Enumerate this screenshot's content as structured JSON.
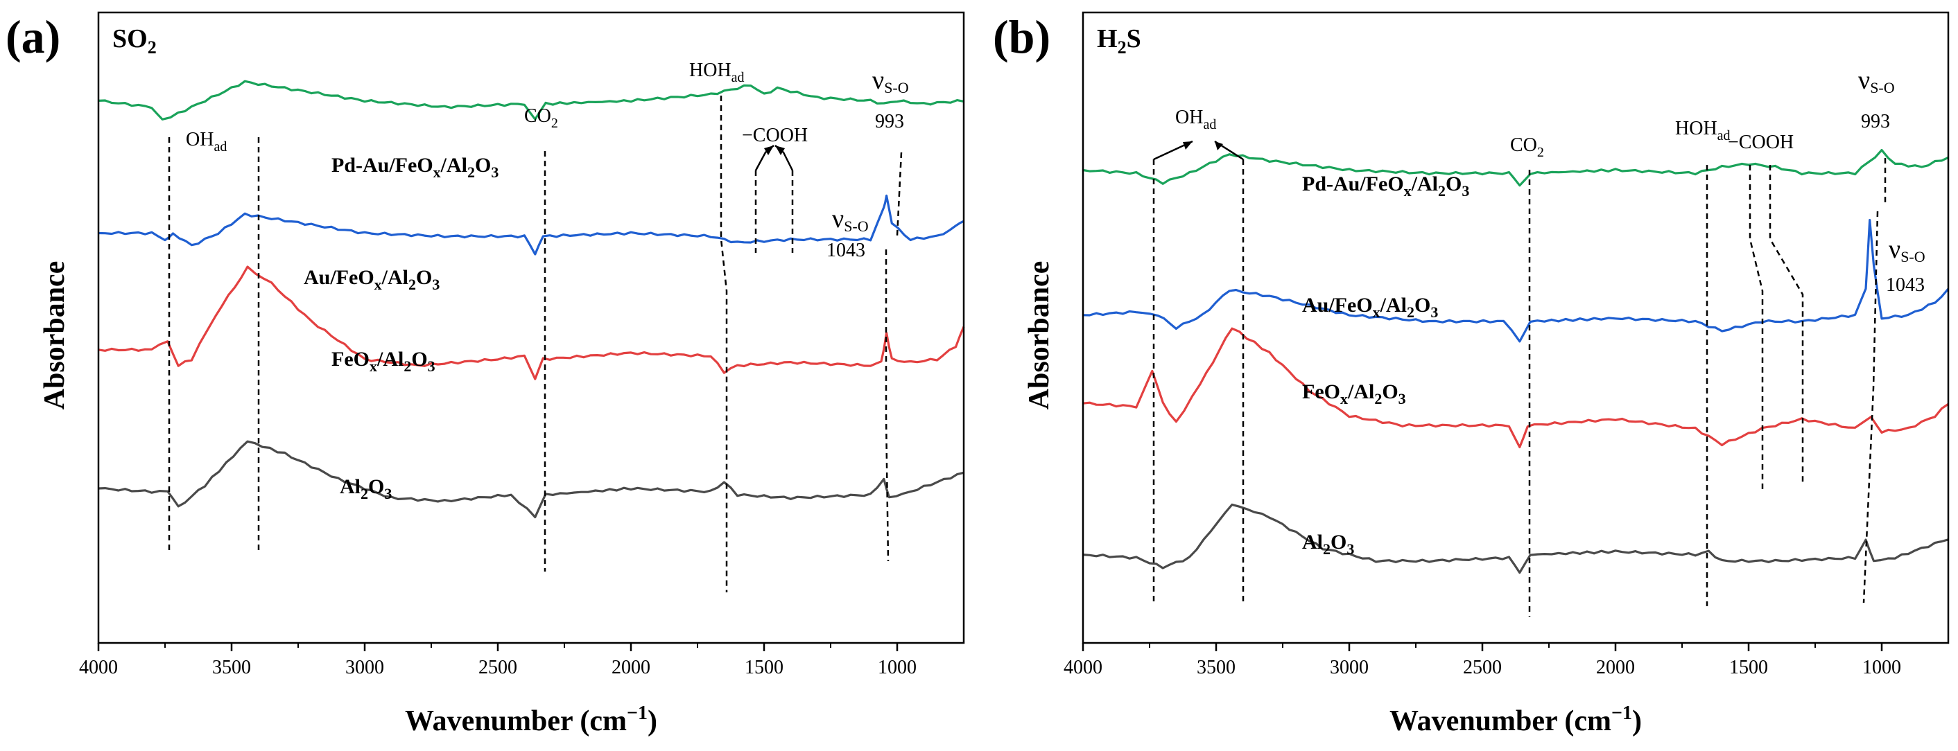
{
  "chart_data": [
    {
      "type": "line",
      "panel": "(a)",
      "title": "SO2",
      "title_main": "SO",
      "title_sub": "2",
      "xlabel": "Wavenumber (cm",
      "xlabel_sup": "−1",
      "xlabel_close": ")",
      "ylabel": "Absorbance",
      "xlim": [
        4000,
        750
      ],
      "x_reversed": true,
      "y_ticks_shown": false,
      "x_ticks": [
        4000,
        3500,
        3000,
        2500,
        2000,
        1500,
        1000
      ],
      "x_tick_labels": [
        "4000",
        "3500",
        "3000",
        "2500",
        "2000",
        "1500",
        "1000"
      ],
      "series": [
        {
          "name": "Pd-Au/FeOx/Al2O3",
          "color": "#1aa35a",
          "label_parts": [
            "Pd-Au/FeO",
            "x",
            "/Al",
            "2",
            "O",
            "3"
          ],
          "points": [
            [
              4000,
              0.86
            ],
            [
              3800,
              0.85
            ],
            [
              3760,
              0.83
            ],
            [
              3700,
              0.84
            ],
            [
              3600,
              0.86
            ],
            [
              3450,
              0.89
            ],
            [
              3300,
              0.88
            ],
            [
              3000,
              0.86
            ],
            [
              2700,
              0.85
            ],
            [
              2400,
              0.855
            ],
            [
              2360,
              0.83
            ],
            [
              2320,
              0.855
            ],
            [
              2000,
              0.86
            ],
            [
              1700,
              0.87
            ],
            [
              1600,
              0.88
            ],
            [
              1550,
              0.885
            ],
            [
              1500,
              0.87
            ],
            [
              1450,
              0.88
            ],
            [
              1400,
              0.875
            ],
            [
              1300,
              0.865
            ],
            [
              1100,
              0.86
            ],
            [
              1050,
              0.855
            ],
            [
              1000,
              0.86
            ],
            [
              900,
              0.855
            ],
            [
              750,
              0.86
            ]
          ]
        },
        {
          "name": "Au/FeOx/Al2O3",
          "color": "#1f5fd1",
          "label_parts": [
            "Au/FeO",
            "x",
            "/Al",
            "2",
            "O",
            "3"
          ],
          "points": [
            [
              4000,
              0.65
            ],
            [
              3800,
              0.65
            ],
            [
              3750,
              0.64
            ],
            [
              3720,
              0.65
            ],
            [
              3650,
              0.63
            ],
            [
              3550,
              0.65
            ],
            [
              3450,
              0.68
            ],
            [
              3300,
              0.67
            ],
            [
              3000,
              0.65
            ],
            [
              2700,
              0.645
            ],
            [
              2400,
              0.645
            ],
            [
              2360,
              0.615
            ],
            [
              2330,
              0.645
            ],
            [
              2000,
              0.65
            ],
            [
              1700,
              0.645
            ],
            [
              1600,
              0.635
            ],
            [
              1400,
              0.64
            ],
            [
              1100,
              0.64
            ],
            [
              1050,
              0.69
            ],
            [
              1040,
              0.71
            ],
            [
              1020,
              0.665
            ],
            [
              950,
              0.64
            ],
            [
              850,
              0.645
            ],
            [
              780,
              0.66
            ],
            [
              750,
              0.67
            ]
          ]
        },
        {
          "name": "FeOx/Al2O3",
          "color": "#e34040",
          "label_parts": [
            "FeO",
            "x",
            "/Al",
            "2",
            "O",
            "3"
          ],
          "points": [
            [
              4000,
              0.465
            ],
            [
              3800,
              0.465
            ],
            [
              3740,
              0.48
            ],
            [
              3700,
              0.44
            ],
            [
              3650,
              0.45
            ],
            [
              3560,
              0.52
            ],
            [
              3440,
              0.595
            ],
            [
              3350,
              0.57
            ],
            [
              3200,
              0.51
            ],
            [
              3000,
              0.45
            ],
            [
              2800,
              0.44
            ],
            [
              2500,
              0.45
            ],
            [
              2400,
              0.455
            ],
            [
              2360,
              0.42
            ],
            [
              2330,
              0.45
            ],
            [
              2000,
              0.46
            ],
            [
              1700,
              0.455
            ],
            [
              1650,
              0.43
            ],
            [
              1600,
              0.44
            ],
            [
              1400,
              0.445
            ],
            [
              1100,
              0.44
            ],
            [
              1060,
              0.445
            ],
            [
              1040,
              0.49
            ],
            [
              1020,
              0.45
            ],
            [
              950,
              0.445
            ],
            [
              850,
              0.45
            ],
            [
              780,
              0.47
            ],
            [
              750,
              0.5
            ]
          ]
        },
        {
          "name": "Al2O3",
          "color": "#4a4a4a",
          "label_parts": [
            "Al",
            "2",
            "O",
            "3"
          ],
          "points": [
            [
              4000,
              0.245
            ],
            [
              3800,
              0.24
            ],
            [
              3740,
              0.24
            ],
            [
              3700,
              0.215
            ],
            [
              3600,
              0.25
            ],
            [
              3440,
              0.32
            ],
            [
              3300,
              0.3
            ],
            [
              3100,
              0.26
            ],
            [
              2900,
              0.23
            ],
            [
              2700,
              0.225
            ],
            [
              2450,
              0.235
            ],
            [
              2360,
              0.2
            ],
            [
              2320,
              0.235
            ],
            [
              2000,
              0.245
            ],
            [
              1700,
              0.24
            ],
            [
              1650,
              0.255
            ],
            [
              1600,
              0.235
            ],
            [
              1400,
              0.23
            ],
            [
              1100,
              0.235
            ],
            [
              1050,
              0.26
            ],
            [
              1030,
              0.23
            ],
            [
              950,
              0.24
            ],
            [
              850,
              0.255
            ],
            [
              750,
              0.27
            ]
          ]
        }
      ],
      "annotations": [
        {
          "text": "OH",
          "sub": "ad"
        },
        {
          "text": "CO",
          "sub": "2"
        },
        {
          "text": "HOH",
          "sub": "ad"
        },
        {
          "text": "−COOH"
        },
        {
          "text": "ν",
          "sub": "S-O",
          "value": "993"
        },
        {
          "text": "ν",
          "sub": "S-O",
          "value": "1043"
        }
      ]
    },
    {
      "type": "line",
      "panel": "(b)",
      "title": "H2S",
      "title_main": "H",
      "title_sub": "2",
      "title_tail": "S",
      "xlabel": "Wavenumber (cm",
      "xlabel_sup": "−1",
      "xlabel_close": ")",
      "ylabel": "Absorbance",
      "xlim": [
        4000,
        750
      ],
      "x_reversed": true,
      "y_ticks_shown": false,
      "x_ticks": [
        4000,
        3500,
        3000,
        2500,
        2000,
        1500,
        1000
      ],
      "x_tick_labels": [
        "4000",
        "3500",
        "3000",
        "2500",
        "2000",
        "1500",
        "1000"
      ],
      "series": [
        {
          "name": "Pd-Au/FeOx/Al2O3",
          "color": "#1aa35a",
          "label_parts": [
            "Pd-Au/FeO",
            "x",
            "/Al",
            "2",
            "O",
            "3"
          ],
          "points": [
            [
              4000,
              0.75
            ],
            [
              3800,
              0.745
            ],
            [
              3700,
              0.73
            ],
            [
              3600,
              0.745
            ],
            [
              3450,
              0.775
            ],
            [
              3300,
              0.765
            ],
            [
              3000,
              0.75
            ],
            [
              2700,
              0.745
            ],
            [
              2400,
              0.745
            ],
            [
              2360,
              0.725
            ],
            [
              2320,
              0.745
            ],
            [
              2000,
              0.75
            ],
            [
              1700,
              0.745
            ],
            [
              1600,
              0.755
            ],
            [
              1500,
              0.76
            ],
            [
              1400,
              0.755
            ],
            [
              1300,
              0.745
            ],
            [
              1100,
              0.745
            ],
            [
              1000,
              0.78
            ],
            [
              950,
              0.76
            ],
            [
              850,
              0.755
            ],
            [
              750,
              0.77
            ]
          ]
        },
        {
          "name": "Au/FeOx/Al2O3",
          "color": "#1f5fd1",
          "label_parts": [
            "Au/FeO",
            "x",
            "/Al",
            "2",
            "O",
            "3"
          ],
          "points": [
            [
              4000,
              0.52
            ],
            [
              3800,
              0.525
            ],
            [
              3720,
              0.52
            ],
            [
              3650,
              0.5
            ],
            [
              3550,
              0.52
            ],
            [
              3450,
              0.56
            ],
            [
              3300,
              0.55
            ],
            [
              3000,
              0.52
            ],
            [
              2700,
              0.51
            ],
            [
              2420,
              0.51
            ],
            [
              2360,
              0.48
            ],
            [
              2320,
              0.51
            ],
            [
              2000,
              0.515
            ],
            [
              1700,
              0.51
            ],
            [
              1600,
              0.495
            ],
            [
              1450,
              0.51
            ],
            [
              1300,
              0.51
            ],
            [
              1100,
              0.52
            ],
            [
              1060,
              0.56
            ],
            [
              1045,
              0.67
            ],
            [
              1030,
              0.6
            ],
            [
              1000,
              0.515
            ],
            [
              900,
              0.52
            ],
            [
              800,
              0.54
            ],
            [
              750,
              0.56
            ]
          ]
        },
        {
          "name": "FeOx/Al2O3",
          "color": "#e34040",
          "label_parts": [
            "FeO",
            "x",
            "/Al",
            "2",
            "O",
            "3"
          ],
          "points": [
            [
              4000,
              0.38
            ],
            [
              3800,
              0.375
            ],
            [
              3740,
              0.43
            ],
            [
              3700,
              0.38
            ],
            [
              3650,
              0.35
            ],
            [
              3560,
              0.41
            ],
            [
              3440,
              0.5
            ],
            [
              3300,
              0.46
            ],
            [
              3150,
              0.4
            ],
            [
              3000,
              0.36
            ],
            [
              2800,
              0.345
            ],
            [
              2500,
              0.345
            ],
            [
              2400,
              0.345
            ],
            [
              2360,
              0.31
            ],
            [
              2330,
              0.345
            ],
            [
              2000,
              0.355
            ],
            [
              1700,
              0.34
            ],
            [
              1600,
              0.315
            ],
            [
              1450,
              0.34
            ],
            [
              1300,
              0.355
            ],
            [
              1100,
              0.34
            ],
            [
              1040,
              0.36
            ],
            [
              1000,
              0.335
            ],
            [
              900,
              0.34
            ],
            [
              800,
              0.36
            ],
            [
              750,
              0.38
            ]
          ]
        },
        {
          "name": "Al2O3",
          "color": "#4a4a4a",
          "label_parts": [
            "Al",
            "2",
            "O",
            "3"
          ],
          "points": [
            [
              4000,
              0.14
            ],
            [
              3800,
              0.135
            ],
            [
              3700,
              0.12
            ],
            [
              3600,
              0.135
            ],
            [
              3440,
              0.22
            ],
            [
              3300,
              0.2
            ],
            [
              3100,
              0.15
            ],
            [
              2900,
              0.13
            ],
            [
              2700,
              0.13
            ],
            [
              2400,
              0.135
            ],
            [
              2360,
              0.11
            ],
            [
              2320,
              0.14
            ],
            [
              2000,
              0.145
            ],
            [
              1700,
              0.14
            ],
            [
              1650,
              0.145
            ],
            [
              1600,
              0.13
            ],
            [
              1400,
              0.13
            ],
            [
              1100,
              0.135
            ],
            [
              1060,
              0.165
            ],
            [
              1030,
              0.13
            ],
            [
              950,
              0.135
            ],
            [
              850,
              0.15
            ],
            [
              750,
              0.165
            ]
          ]
        }
      ],
      "annotations": [
        {
          "text": "OH",
          "sub": "ad"
        },
        {
          "text": "CO",
          "sub": "2"
        },
        {
          "text": "HOH",
          "sub": "ad"
        },
        {
          "text": "−COOH"
        },
        {
          "text": "ν",
          "sub": "S-O",
          "value": "993"
        },
        {
          "text": "ν",
          "sub": "S-O",
          "value": "1043"
        }
      ]
    }
  ]
}
